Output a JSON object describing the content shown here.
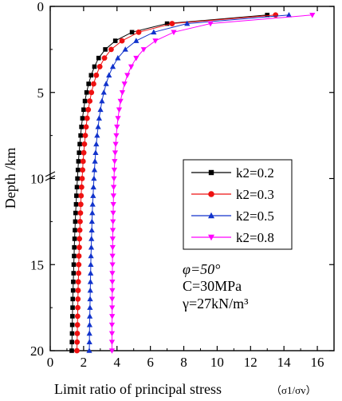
{
  "chart_data": {
    "type": "line",
    "xlabel": "Limit ratio of principal stress",
    "xlabel_unit": "（σ1/σv）",
    "ylabel": "Depth /km",
    "xlim": [
      0,
      17
    ],
    "ylim": [
      20,
      0
    ],
    "x_inverted": false,
    "y_inverted": true,
    "x_ticks": [
      "0",
      "2",
      "4",
      "6",
      "8",
      "10",
      "12",
      "14",
      "16"
    ],
    "y_ticks": [
      "0",
      "5",
      "10",
      "15",
      "20"
    ],
    "legend_position": "center-right",
    "series": [
      {
        "name": "k2=0.2",
        "color": "#000000",
        "marker": "square",
        "x": [
          13.0,
          7.0,
          4.9,
          3.9,
          3.3,
          2.9,
          2.65,
          2.45,
          2.3,
          2.18,
          2.08,
          2.0,
          1.93,
          1.87,
          1.82,
          1.77,
          1.73,
          1.69,
          1.66,
          1.63,
          1.6,
          1.57,
          1.55,
          1.52,
          1.5,
          1.48,
          1.46,
          1.44,
          1.43,
          1.41,
          1.4,
          1.38,
          1.37,
          1.35,
          1.34,
          1.33,
          1.32,
          1.31,
          1.3,
          1.29
        ],
        "y": [
          0.5,
          1.0,
          1.5,
          2.0,
          2.5,
          3.0,
          3.5,
          4.0,
          4.5,
          5.0,
          5.5,
          6.0,
          6.5,
          7.0,
          7.5,
          8.0,
          8.5,
          9.0,
          9.5,
          10.0,
          10.5,
          11.0,
          11.5,
          12.0,
          12.5,
          13.0,
          13.5,
          14.0,
          14.5,
          15.0,
          15.5,
          16.0,
          16.5,
          17.0,
          17.5,
          18.0,
          18.5,
          19.0,
          19.5,
          20.0
        ]
      },
      {
        "name": "k2=0.3",
        "color": "#ee1111",
        "marker": "circle",
        "x": [
          13.5,
          7.3,
          5.3,
          4.3,
          3.65,
          3.25,
          2.97,
          2.76,
          2.6,
          2.47,
          2.37,
          2.28,
          2.21,
          2.15,
          2.1,
          2.05,
          2.01,
          1.97,
          1.94,
          1.91,
          1.88,
          1.85,
          1.83,
          1.81,
          1.79,
          1.77,
          1.75,
          1.74,
          1.72,
          1.71,
          1.7,
          1.68,
          1.67,
          1.66,
          1.65,
          1.64,
          1.63,
          1.62,
          1.61,
          1.6
        ],
        "y": [
          0.5,
          1.0,
          1.5,
          2.0,
          2.5,
          3.0,
          3.5,
          4.0,
          4.5,
          5.0,
          5.5,
          6.0,
          6.5,
          7.0,
          7.5,
          8.0,
          8.5,
          9.0,
          9.5,
          10.0,
          10.5,
          11.0,
          11.5,
          12.0,
          12.5,
          13.0,
          13.5,
          14.0,
          14.5,
          15.0,
          15.5,
          16.0,
          16.5,
          17.0,
          17.5,
          18.0,
          18.5,
          19.0,
          19.5,
          20.0
        ]
      },
      {
        "name": "k2=0.5",
        "color": "#1133cc",
        "marker": "triangle-up",
        "x": [
          14.3,
          8.2,
          6.2,
          5.15,
          4.5,
          4.05,
          3.75,
          3.52,
          3.35,
          3.21,
          3.1,
          3.01,
          2.93,
          2.87,
          2.81,
          2.76,
          2.72,
          2.68,
          2.65,
          2.62,
          2.59,
          2.57,
          2.54,
          2.52,
          2.5,
          2.49,
          2.47,
          2.46,
          2.44,
          2.43,
          2.42,
          2.41,
          2.4,
          2.39,
          2.38,
          2.37,
          2.36,
          2.35,
          2.35,
          2.34
        ],
        "y": [
          0.5,
          1.0,
          1.5,
          2.0,
          2.5,
          3.0,
          3.5,
          4.0,
          4.5,
          5.0,
          5.5,
          6.0,
          6.5,
          7.0,
          7.5,
          8.0,
          8.5,
          9.0,
          9.5,
          10.0,
          10.5,
          11.0,
          11.5,
          12.0,
          12.5,
          13.0,
          13.5,
          14.0,
          14.5,
          15.0,
          15.5,
          16.0,
          16.5,
          17.0,
          17.5,
          18.0,
          18.5,
          19.0,
          19.5,
          20.0
        ]
      },
      {
        "name": "k2=0.8",
        "color": "#ff00ff",
        "marker": "triangle-down",
        "x": [
          15.7,
          9.6,
          7.4,
          6.3,
          5.6,
          5.15,
          4.85,
          4.62,
          4.45,
          4.32,
          4.21,
          4.13,
          4.06,
          4.0,
          3.96,
          3.92,
          3.89,
          3.86,
          3.84,
          3.82,
          3.8,
          3.79,
          3.78,
          3.77,
          3.76,
          3.75,
          3.74,
          3.74,
          3.73,
          3.73,
          3.72,
          3.72,
          3.72,
          3.71,
          3.71,
          3.71,
          3.7,
          3.7,
          3.7,
          3.7
        ],
        "y": [
          0.5,
          1.0,
          1.5,
          2.0,
          2.5,
          3.0,
          3.5,
          4.0,
          4.5,
          5.0,
          5.5,
          6.0,
          6.5,
          7.0,
          7.5,
          8.0,
          8.5,
          9.0,
          9.5,
          10.0,
          10.5,
          11.0,
          11.5,
          12.0,
          12.5,
          13.0,
          13.5,
          14.0,
          14.5,
          15.0,
          15.5,
          16.0,
          16.5,
          17.0,
          17.5,
          18.0,
          18.5,
          19.0,
          19.5,
          20.0
        ]
      }
    ],
    "annotations": [
      "φ=50°",
      "C=30MPa",
      "γ=27kN/m³"
    ]
  }
}
